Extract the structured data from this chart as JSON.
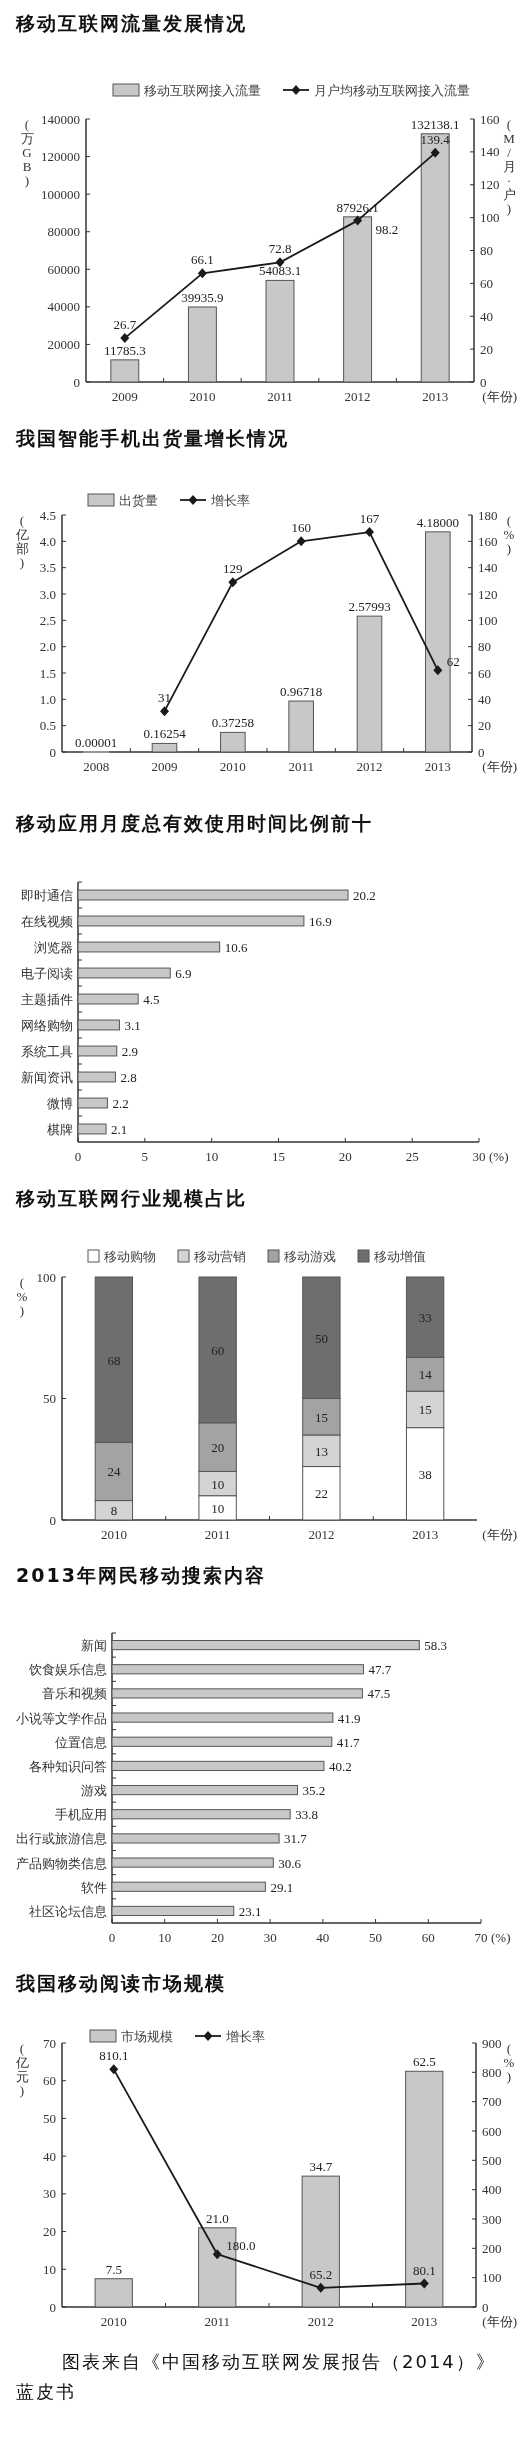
{
  "chart_data": [
    {
      "type": "bar",
      "title": "移动互联网流量发展情况",
      "categories": [
        "2009",
        "2010",
        "2011",
        "2012",
        "2013"
      ],
      "xlabel": "(年份)",
      "ylabel": "(万GB)",
      "y2label": "(M/月·户)",
      "ylim": [
        0,
        140000
      ],
      "yticks": [
        0,
        20000,
        40000,
        60000,
        80000,
        100000,
        120000,
        140000
      ],
      "y2lim": [
        0,
        160
      ],
      "y2ticks": [
        0,
        20,
        40,
        60,
        80,
        100,
        120,
        140,
        160
      ],
      "legend": "top",
      "marker": "diamond",
      "data_labels": true,
      "series": [
        {
          "name": "移动互联网接入流量",
          "color": "#c8c8c8",
          "values": [
            11785.3,
            39935.9,
            54083.1,
            87926.1,
            132138.1
          ]
        },
        {
          "name": "月户均移动互联网接入流量",
          "type": "line",
          "axis": "y2",
          "color": "#1a1a1a",
          "values": [
            26.7,
            66.1,
            72.8,
            98.2,
            139.4
          ]
        }
      ]
    },
    {
      "type": "bar",
      "title": "我国智能手机出货量增长情况",
      "categories": [
        "2008",
        "2009",
        "2010",
        "2011",
        "2012",
        "2013"
      ],
      "xlabel": "(年份)",
      "ylabel": "(亿部)",
      "y2label": "(%)",
      "ylim": [
        0,
        4.5
      ],
      "yticks": [
        0,
        0.5,
        {
          "value": 1,
          "label": "1.0"
        },
        1.5,
        {
          "value": 2,
          "label": "2.0"
        },
        2.5,
        {
          "value": 3,
          "label": "3.0"
        },
        3.5,
        {
          "value": 4,
          "label": "4.0"
        },
        4.5
      ],
      "y2lim": [
        0,
        180
      ],
      "y2ticks": [
        0,
        20,
        40,
        60,
        80,
        100,
        120,
        140,
        160,
        180
      ],
      "legend": "top",
      "marker": "diamond",
      "data_labels": true,
      "series": [
        {
          "name": "出货量",
          "color": "#c8c8c8",
          "values": [
            1e-05,
            0.16254,
            0.37258,
            0.96718,
            2.57993,
            4.18
          ],
          "value_labels": [
            "0.00001",
            "0.16254",
            "0.37258",
            "0.96718",
            "2.57993",
            "4.18000"
          ]
        },
        {
          "name": "增长率",
          "type": "line",
          "axis": "y2",
          "color": "#1a1a1a",
          "values": [
            null,
            31,
            129,
            160,
            167,
            62
          ]
        }
      ]
    },
    {
      "type": "bar",
      "orientation": "horizontal",
      "title": "移动应用月度总有效使用时间比例前十",
      "categories": [
        "即时通信",
        "在线视频",
        "浏览器",
        "电子阅读",
        "主题插件",
        "网络购物",
        "系统工具",
        "新闻资讯",
        "微博",
        "棋牌"
      ],
      "values": [
        20.2,
        16.9,
        10.6,
        6.9,
        4.5,
        3.1,
        2.9,
        2.8,
        2.2,
        2.1
      ],
      "color": "#c8c8c8",
      "xlim": [
        0,
        30
      ],
      "xticks": [
        0,
        5,
        10,
        15,
        20,
        25,
        30
      ],
      "xlabel": "(%)",
      "data_labels": true
    },
    {
      "type": "bar",
      "stacked": true,
      "title": "移动互联网行业规模占比",
      "categories": [
        "2010",
        "2011",
        "2012",
        "2013"
      ],
      "xlabel": "(年份)",
      "ylabel": "(%)",
      "ylim": [
        0,
        100
      ],
      "yticks": [
        0,
        50,
        100
      ],
      "legend": "top",
      "data_labels": true,
      "series": [
        {
          "name": "移动购物",
          "color": "#ffffff",
          "values": [
            null,
            10,
            22,
            38
          ]
        },
        {
          "name": "移动营销",
          "color": "#d4d4d4",
          "values": [
            8,
            10,
            13,
            15
          ]
        },
        {
          "name": "移动游戏",
          "color": "#a3a3a3",
          "values": [
            24,
            20,
            15,
            14
          ]
        },
        {
          "name": "移动增值",
          "color": "#6e6e6e",
          "values": [
            68,
            60,
            50,
            33
          ]
        }
      ]
    },
    {
      "type": "bar",
      "orientation": "horizontal",
      "title": "2013年网民移动搜索内容",
      "categories": [
        "新闻",
        "饮食娱乐信息",
        "音乐和视频",
        "小说等文学作品",
        "位置信息",
        "各种知识问答",
        "游戏",
        "手机应用",
        "出行或旅游信息",
        "产品购物类信息",
        "软件",
        "社区论坛信息"
      ],
      "values": [
        58.3,
        47.7,
        47.5,
        41.9,
        41.7,
        40.2,
        35.2,
        33.8,
        31.7,
        30.6,
        29.1,
        23.1
      ],
      "color": "#c8c8c8",
      "xlim": [
        0,
        70
      ],
      "xticks": [
        0,
        10,
        20,
        30,
        40,
        50,
        60,
        70
      ],
      "xlabel": "(%)",
      "data_labels": true
    },
    {
      "type": "bar",
      "title": "我国移动阅读市场规模",
      "categories": [
        "2010",
        "2011",
        "2012",
        "2013"
      ],
      "xlabel": "(年份)",
      "ylabel": "(亿元)",
      "y2label": "(%)",
      "ylim": [
        0,
        70
      ],
      "yticks": [
        0,
        10,
        20,
        30,
        40,
        50,
        60,
        70
      ],
      "y2lim": [
        0,
        900
      ],
      "y2ticks": [
        0,
        100,
        200,
        300,
        400,
        500,
        600,
        700,
        800,
        900
      ],
      "legend": "top",
      "marker": "diamond",
      "series": [
        {
          "name": "市场规模",
          "color": "#c8c8c8",
          "values": [
            7.5,
            21.0,
            34.7,
            62.5
          ],
          "value_labels": [
            "7.5",
            "21.0",
            "34.7",
            "62.5"
          ]
        },
        {
          "name": "增长率",
          "type": "line",
          "axis": "y2",
          "color": "#1a1a1a",
          "values": [
            810.1,
            180.0,
            65.2,
            80.1
          ],
          "value_labels": [
            "810.1",
            "180.0",
            "65.2",
            "80.1"
          ]
        }
      ],
      "annotations": [
        "图表来自《中国移动互联网发展报告（2014）》蓝皮书"
      ]
    }
  ]
}
